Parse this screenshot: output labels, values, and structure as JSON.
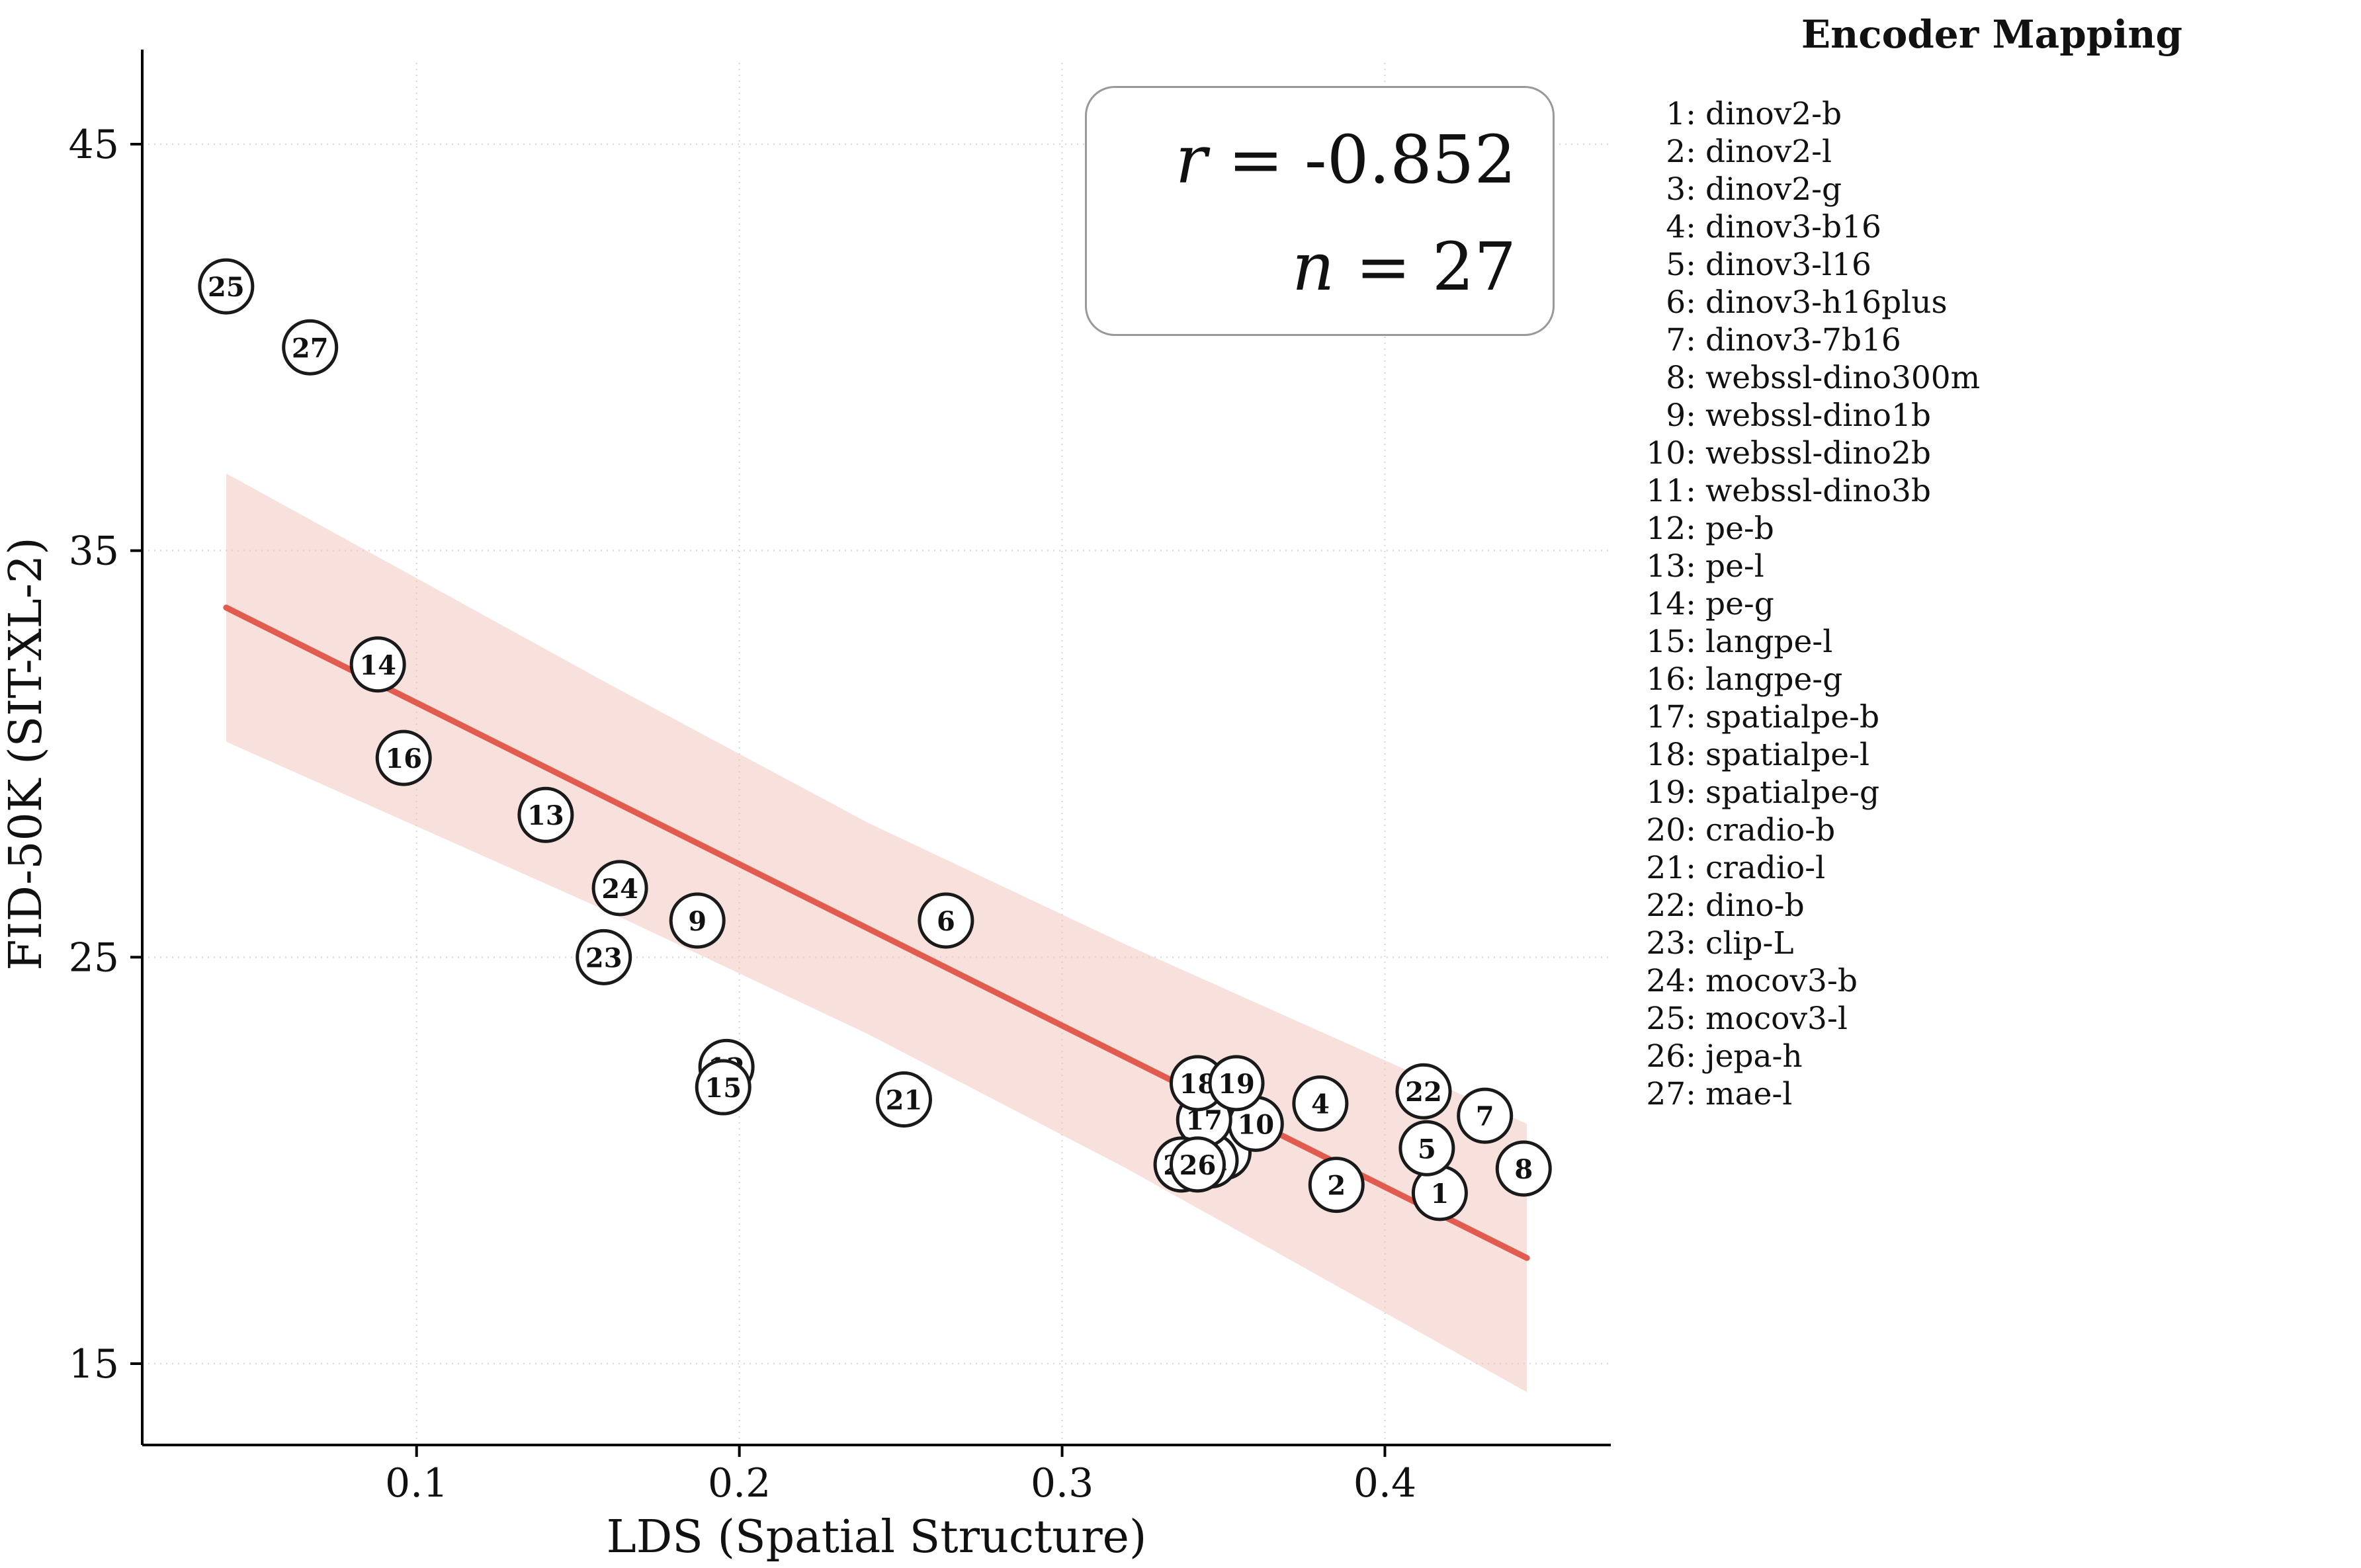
{
  "legend": {
    "title": "Encoder Mapping"
  },
  "chart_data": {
    "type": "scatter",
    "xlabel": "LDS (Spatial Structure)",
    "ylabel": "FID-50K (SIT-XL-2)",
    "xlim": [
      0.015,
      0.47
    ],
    "ylim": [
      13,
      47
    ],
    "grid": true,
    "legend_position": "right",
    "xticks": {
      "values": [
        0.1,
        0.2,
        0.3,
        0.4
      ],
      "labels": [
        "0.1",
        "0.2",
        "0.3",
        "0.4"
      ]
    },
    "yticks": {
      "values": [
        15,
        25,
        35,
        45
      ],
      "labels": [
        "15",
        "25",
        "35",
        "45"
      ]
    },
    "annotation": {
      "r_var": "r",
      "r_rest": " = -0.852",
      "n_var": "n",
      "n_rest": " = 27",
      "r": -0.852,
      "n": 27
    },
    "trend": {
      "x": [
        0.041,
        0.444
      ],
      "y": [
        33.6,
        17.6
      ],
      "band": {
        "x": [
          0.041,
          0.16,
          0.24,
          0.32,
          0.444
        ],
        "upper": [
          36.9,
          31.7,
          28.3,
          25.3,
          20.9
        ],
        "lower": [
          30.3,
          26.1,
          23.1,
          19.8,
          14.3
        ]
      }
    },
    "colors": {
      "trend": "#e15b4f",
      "band": "#f3c9bf",
      "marker_fill": "#ffffff",
      "marker_stroke": "#1a1a1a",
      "grid": "#dcdcdc"
    },
    "points": [
      {
        "id": 1,
        "label": "dinov2-b",
        "x": 0.417,
        "y": 19.2
      },
      {
        "id": 2,
        "label": "dinov2-l",
        "x": 0.385,
        "y": 19.4
      },
      {
        "id": 3,
        "label": "dinov2-g",
        "x": 0.35,
        "y": 20.2
      },
      {
        "id": 4,
        "label": "dinov3-b16",
        "x": 0.38,
        "y": 21.4
      },
      {
        "id": 5,
        "label": "dinov3-l16",
        "x": 0.413,
        "y": 20.3
      },
      {
        "id": 6,
        "label": "dinov3-h16plus",
        "x": 0.264,
        "y": 25.9
      },
      {
        "id": 7,
        "label": "dinov3-7b16",
        "x": 0.431,
        "y": 21.1
      },
      {
        "id": 8,
        "label": "webssl-dino300m",
        "x": 0.443,
        "y": 19.8
      },
      {
        "id": 9,
        "label": "webssl-dino1b",
        "x": 0.187,
        "y": 25.9
      },
      {
        "id": 10,
        "label": "webssl-dino2b",
        "x": 0.36,
        "y": 20.9
      },
      {
        "id": 11,
        "label": "webssl-dino3b",
        "x": 0.346,
        "y": 20.0
      },
      {
        "id": 12,
        "label": "pe-b",
        "x": 0.196,
        "y": 22.3
      },
      {
        "id": 13,
        "label": "pe-l",
        "x": 0.14,
        "y": 28.5
      },
      {
        "id": 14,
        "label": "pe-g",
        "x": 0.088,
        "y": 32.2
      },
      {
        "id": 15,
        "label": "langpe-l",
        "x": 0.195,
        "y": 21.8
      },
      {
        "id": 16,
        "label": "langpe-g",
        "x": 0.096,
        "y": 29.9
      },
      {
        "id": 17,
        "label": "spatialpe-b",
        "x": 0.344,
        "y": 21.0
      },
      {
        "id": 18,
        "label": "spatialpe-l",
        "x": 0.342,
        "y": 21.9
      },
      {
        "id": 19,
        "label": "spatialpe-g",
        "x": 0.354,
        "y": 21.9
      },
      {
        "id": 20,
        "label": "cradio-b",
        "x": 0.337,
        "y": 19.9
      },
      {
        "id": 21,
        "label": "cradio-l",
        "x": 0.251,
        "y": 21.5
      },
      {
        "id": 22,
        "label": "dino-b",
        "x": 0.412,
        "y": 21.7
      },
      {
        "id": 23,
        "label": "clip-L",
        "x": 0.158,
        "y": 25.0
      },
      {
        "id": 24,
        "label": "mocov3-b",
        "x": 0.163,
        "y": 26.7
      },
      {
        "id": 25,
        "label": "mocov3-l",
        "x": 0.041,
        "y": 41.5
      },
      {
        "id": 26,
        "label": "jepa-h",
        "x": 0.342,
        "y": 19.9
      },
      {
        "id": 27,
        "label": "mae-l",
        "x": 0.067,
        "y": 40.0
      }
    ]
  }
}
